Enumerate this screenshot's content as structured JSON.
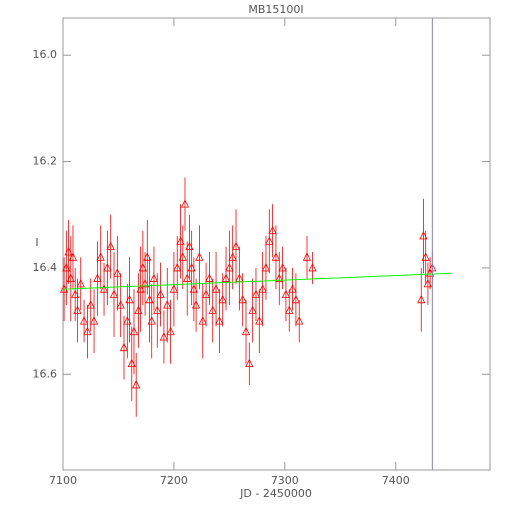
{
  "chart_data": {
    "type": "scatter",
    "title": "MB15100I",
    "x_label": "JD - 2450000",
    "y_label": "I",
    "xlim": [
      7100,
      7485
    ],
    "ylim": [
      16.78,
      15.93
    ],
    "xticks": [
      7100,
      7200,
      7300,
      7400
    ],
    "yticks": [
      {
        "value": 16,
        "label": "16.0"
      },
      16.2,
      16.4,
      16.6
    ],
    "grid": false,
    "series": [
      {
        "name": "I",
        "color": "#ff0000",
        "x": [
          7101,
          7103,
          7105,
          7107,
          7109,
          7111,
          7113,
          7116,
          7119,
          7122,
          7125,
          7128,
          7131,
          7134,
          7137,
          7140,
          7143,
          7146,
          7149,
          7152,
          7155,
          7158,
          7160,
          7162,
          7164,
          7166,
          7168,
          7170,
          7172,
          7174,
          7176,
          7178,
          7180,
          7182,
          7185,
          7188,
          7191,
          7194,
          7197,
          7200,
          7203,
          7206,
          7208,
          7210,
          7212,
          7214,
          7216,
          7218,
          7220,
          7223,
          7226,
          7229,
          7232,
          7235,
          7238,
          7241,
          7244,
          7247,
          7250,
          7253,
          7256,
          7259,
          7262,
          7265,
          7268,
          7271,
          7274,
          7277,
          7280,
          7283,
          7286,
          7289,
          7292,
          7295,
          7298,
          7301,
          7304,
          7307,
          7310,
          7313,
          7320,
          7325,
          7423,
          7425,
          7427,
          7429,
          7431,
          7433
        ],
        "values": [
          16.44,
          16.4,
          16.37,
          16.42,
          16.38,
          16.45,
          16.48,
          16.43,
          16.5,
          16.52,
          16.47,
          16.5,
          16.42,
          16.38,
          16.44,
          16.4,
          16.36,
          16.45,
          16.41,
          16.47,
          16.55,
          16.5,
          16.46,
          16.58,
          16.52,
          16.62,
          16.48,
          16.44,
          16.4,
          16.43,
          16.38,
          16.46,
          16.5,
          16.42,
          16.48,
          16.45,
          16.53,
          16.47,
          16.52,
          16.44,
          16.4,
          16.35,
          16.38,
          16.28,
          16.42,
          16.36,
          16.4,
          16.44,
          16.47,
          16.38,
          16.5,
          16.45,
          16.42,
          16.48,
          16.44,
          16.5,
          16.46,
          16.42,
          16.4,
          16.38,
          16.36,
          16.42,
          16.46,
          16.52,
          16.58,
          16.48,
          16.45,
          16.5,
          16.44,
          16.4,
          16.35,
          16.33,
          16.38,
          16.42,
          16.4,
          16.45,
          16.48,
          16.44,
          16.46,
          16.5,
          16.38,
          16.4,
          16.46,
          16.34,
          16.38,
          16.43,
          16.41,
          16.4
        ],
        "errors": [
          0.06,
          0.07,
          0.06,
          0.08,
          0.06,
          0.05,
          0.06,
          0.05,
          0.04,
          0.05,
          0.05,
          0.06,
          0.07,
          0.06,
          0.05,
          0.07,
          0.06,
          0.08,
          0.07,
          0.06,
          0.06,
          0.07,
          0.08,
          0.07,
          0.08,
          0.06,
          0.07,
          0.08,
          0.07,
          0.06,
          0.07,
          0.08,
          0.07,
          0.06,
          0.07,
          0.06,
          0.05,
          0.07,
          0.06,
          0.07,
          0.06,
          0.07,
          0.06,
          0.05,
          0.07,
          0.06,
          0.07,
          0.06,
          0.05,
          0.06,
          0.07,
          0.06,
          0.05,
          0.06,
          0.07,
          0.06,
          0.05,
          0.06,
          0.07,
          0.06,
          0.07,
          0.06,
          0.05,
          0.06,
          0.04,
          0.06,
          0.05,
          0.06,
          0.07,
          0.06,
          0.06,
          0.05,
          0.06,
          0.05,
          0.04,
          0.05,
          0.04,
          0.04,
          0.05,
          0.04,
          0.04,
          0.03,
          0.06,
          0.07,
          0.05,
          0.04,
          0.03,
          0.03
        ]
      }
    ],
    "trend": {
      "color": "#00ff00",
      "x": [
        7100,
        7450
      ],
      "values": [
        16.44,
        16.41
      ]
    },
    "vline": {
      "color": "#8080c0",
      "x": 7433
    }
  }
}
